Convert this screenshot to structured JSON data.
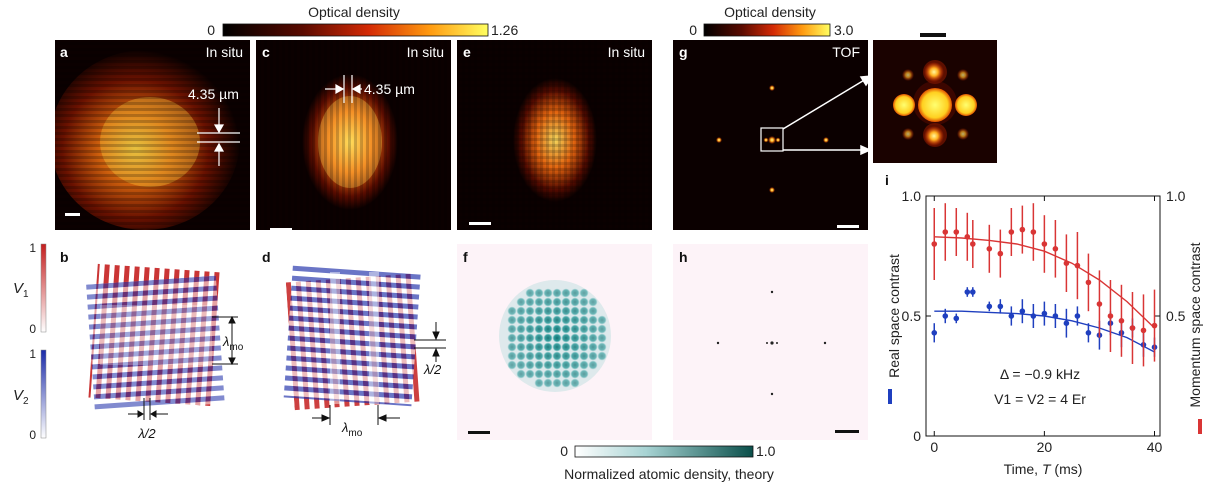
{
  "colorbars": {
    "optical_density_1": {
      "title": "Optical density",
      "min_label": "0",
      "max_label": "1.26"
    },
    "optical_density_2": {
      "title": "Optical density",
      "min_label": "0",
      "max_label": "3.0"
    },
    "theory": {
      "title": "Normalized atomic density, theory",
      "min_label": "0",
      "max_label": "1.0"
    },
    "v1": {
      "label_v": "V",
      "label_sub": "1",
      "min_label": "0",
      "max_label": "1"
    },
    "v2": {
      "label_v": "V",
      "label_sub": "2",
      "min_label": "0",
      "max_label": "1"
    }
  },
  "panels": {
    "a": {
      "letter": "a",
      "tag": "In situ",
      "annotation_value": "4.35",
      "annotation_unit": "µm"
    },
    "c": {
      "letter": "c",
      "tag": "In situ",
      "annotation_value": "4.35",
      "annotation_unit": "µm"
    },
    "e": {
      "letter": "e",
      "tag": "In situ"
    },
    "g": {
      "letter": "g",
      "tag": "TOF"
    },
    "b": {
      "letter": "b",
      "lambda_mo_main": "λ",
      "lambda_mo_sub": "mo",
      "lambda_half": "λ/2"
    },
    "d": {
      "letter": "d",
      "lambda_mo_main": "λ",
      "lambda_mo_sub": "mo",
      "lambda_half": "λ/2"
    },
    "f": {
      "letter": "f"
    },
    "h": {
      "letter": "h"
    },
    "i": {
      "letter": "i"
    }
  },
  "colors": {
    "real_space": "#1f3fbf",
    "momentum_space": "#d93535",
    "theory_teal": "#0f6b6b",
    "v1_red": "#c41e1e",
    "v2_blue": "#1a2aa8"
  },
  "chart_data": {
    "type": "scatter",
    "xlabel_prefix": "Time, ",
    "xlabel_var": "T",
    "xlabel_unit": " (ms)",
    "ylabel_left": "Real space contrast",
    "ylabel_right": "Momentum space contrast",
    "xlim": [
      -1.5,
      41
    ],
    "ylim_left": [
      0,
      1.0
    ],
    "ylim_right": [
      0,
      1.0
    ],
    "xticks": [
      0,
      20,
      40
    ],
    "yticks_left": [
      0,
      0.5,
      1.0
    ],
    "yticks_right": [
      0.5,
      1.0
    ],
    "ytick_labels_left": [
      "0",
      "0.5",
      "1.0"
    ],
    "ytick_labels_right": [
      "0.5",
      "1.0"
    ],
    "annotation_1": "Δ = −0.9 kHz",
    "annotation_2": "V1 = V2 = 4 Er",
    "series": [
      {
        "name": "Real space contrast",
        "color": "#1f3fbf",
        "x": [
          0,
          2,
          4,
          6,
          7,
          10,
          12,
          14,
          16,
          18,
          20,
          22,
          24,
          26,
          28,
          30,
          32,
          34,
          36,
          38,
          40
        ],
        "y": [
          0.43,
          0.5,
          0.49,
          0.6,
          0.6,
          0.54,
          0.54,
          0.5,
          0.52,
          0.5,
          0.51,
          0.5,
          0.47,
          0.5,
          0.43,
          0.42,
          0.47,
          0.43,
          0.45,
          0.38,
          0.37
        ],
        "err": [
          0.04,
          0.03,
          0.02,
          0.02,
          0.02,
          0.02,
          0.03,
          0.04,
          0.05,
          0.05,
          0.05,
          0.05,
          0.06,
          0.04,
          0.04,
          0.06,
          0.05,
          0.06,
          0.04,
          0.05,
          0.04
        ],
        "fit_x": [
          0,
          5,
          10,
          15,
          20,
          25,
          30,
          35,
          40
        ],
        "fit_y": [
          0.52,
          0.52,
          0.515,
          0.51,
          0.5,
          0.48,
          0.45,
          0.41,
          0.35
        ]
      },
      {
        "name": "Momentum space contrast",
        "color": "#d93535",
        "x": [
          0,
          2,
          4,
          6,
          7,
          10,
          12,
          14,
          16,
          18,
          20,
          22,
          24,
          26,
          28,
          30,
          32,
          34,
          36,
          38,
          40
        ],
        "y": [
          0.8,
          0.85,
          0.85,
          0.83,
          0.8,
          0.78,
          0.76,
          0.85,
          0.86,
          0.85,
          0.8,
          0.78,
          0.72,
          0.71,
          0.64,
          0.55,
          0.5,
          0.48,
          0.45,
          0.44,
          0.46
        ],
        "err": [
          0.15,
          0.12,
          0.1,
          0.1,
          0.1,
          0.1,
          0.1,
          0.1,
          0.1,
          0.12,
          0.12,
          0.12,
          0.12,
          0.14,
          0.12,
          0.14,
          0.15,
          0.15,
          0.15,
          0.15,
          0.15
        ],
        "fit_x": [
          0,
          5,
          10,
          15,
          20,
          25,
          30,
          35,
          40
        ],
        "fit_y": [
          0.83,
          0.825,
          0.815,
          0.8,
          0.77,
          0.72,
          0.65,
          0.56,
          0.45
        ]
      }
    ]
  }
}
